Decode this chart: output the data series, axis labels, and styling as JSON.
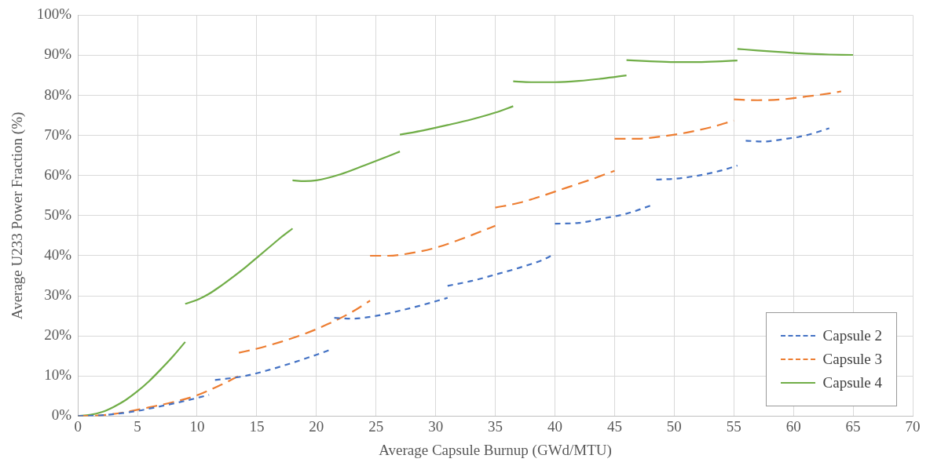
{
  "chart_data": {
    "type": "line",
    "xlabel": "Average Capsule Burnup (GWd/MTU)",
    "ylabel": "Average U233 Power Fraction (%)",
    "xlim": [
      0,
      70
    ],
    "xticks": [
      0,
      5,
      10,
      15,
      20,
      25,
      30,
      35,
      40,
      45,
      50,
      55,
      60,
      65,
      70
    ],
    "ylim": [
      0,
      100
    ],
    "yticks": [
      {
        "value": 0,
        "label": "0%"
      },
      {
        "value": 10,
        "label": "10%"
      },
      {
        "value": 20,
        "label": "20%"
      },
      {
        "value": 30,
        "label": "30%"
      },
      {
        "value": 40,
        "label": "40%"
      },
      {
        "value": 50,
        "label": "50%"
      },
      {
        "value": 60,
        "label": "60%"
      },
      {
        "value": 70,
        "label": "70%"
      },
      {
        "value": 80,
        "label": "80%"
      },
      {
        "value": 90,
        "label": "90%"
      },
      {
        "value": 100,
        "label": "100%"
      }
    ],
    "grid": true,
    "legend": "bottom right",
    "marker": "none",
    "series": [
      {
        "name": "Capsule 2",
        "color": "#4472c4",
        "line_style": "dashed",
        "x": [
          0,
          2,
          5,
          7,
          9,
          11,
          null,
          11.5,
          14,
          16,
          18,
          20,
          21.3,
          null,
          21.5,
          23,
          25,
          27,
          29,
          31,
          null,
          31,
          33,
          35,
          37,
          39,
          40,
          null,
          40,
          42,
          44,
          46,
          48.3,
          null,
          48.5,
          50,
          52,
          54,
          55.3,
          null,
          56,
          57.5,
          59,
          61,
          63
        ],
        "values": [
          0,
          0.2,
          1.3,
          2.5,
          3.8,
          5.3,
          null,
          9,
          10,
          11.5,
          13.3,
          15.3,
          16.7,
          null,
          24.5,
          24.3,
          25,
          26.3,
          27.8,
          29.5,
          null,
          32.5,
          33.7,
          35.3,
          37,
          39,
          40.5,
          null,
          48,
          48.2,
          49.3,
          50.5,
          52.8,
          null,
          59,
          59.2,
          60,
          61.3,
          62.5,
          null,
          68.7,
          68.5,
          69,
          70,
          71.8
        ]
      },
      {
        "name": "Capsule 3",
        "color": "#ed7d31",
        "line_style": "dashed",
        "x": [
          0,
          2,
          4,
          6,
          8,
          10,
          12,
          13.5,
          null,
          13.5,
          15,
          17,
          19,
          21,
          23,
          24.5,
          null,
          24.5,
          26,
          28,
          30,
          32,
          34,
          35,
          null,
          35,
          37,
          39,
          41,
          43,
          45,
          null,
          45,
          47,
          49,
          51,
          53,
          55,
          null,
          55,
          57,
          59,
          61,
          63,
          64
        ],
        "values": [
          0,
          0.2,
          1,
          2.2,
          3.5,
          5.2,
          7.8,
          10,
          null,
          15.8,
          16.8,
          18.5,
          20.5,
          23,
          26,
          28.8,
          null,
          40,
          40,
          40.7,
          42,
          44,
          46.3,
          47.5,
          null,
          52,
          53.2,
          55,
          57,
          59,
          61.2,
          null,
          69.2,
          69.2,
          69.8,
          70.7,
          72,
          73.7,
          null,
          79,
          78.8,
          79,
          79.7,
          80.5,
          81
        ]
      },
      {
        "name": "Capsule 4",
        "color": "#70ad47",
        "line_style": "solid",
        "x": [
          0,
          1,
          2,
          3,
          4,
          5,
          6,
          7,
          8,
          9,
          null,
          9,
          10,
          11,
          12,
          13,
          14,
          15,
          16,
          17,
          18,
          null,
          18,
          19,
          20,
          22,
          24,
          26,
          27,
          null,
          27,
          29,
          31,
          33,
          35,
          36.5,
          null,
          36.5,
          38,
          40,
          42,
          44,
          46,
          null,
          46,
          48,
          50,
          52,
          54,
          55.3,
          null,
          55.3,
          57,
          59,
          61,
          63,
          65
        ],
        "values": [
          0,
          0.3,
          1,
          2.3,
          4,
          6.2,
          8.8,
          11.8,
          15,
          18.5,
          null,
          28,
          29,
          30.5,
          32.5,
          34.7,
          37,
          39.5,
          42,
          44.5,
          46.8,
          null,
          58.8,
          58.6,
          58.8,
          60.3,
          62.5,
          64.8,
          66,
          null,
          70.2,
          71.3,
          72.6,
          74,
          75.7,
          77.3,
          null,
          83.5,
          83.3,
          83.3,
          83.6,
          84.2,
          85,
          null,
          88.8,
          88.5,
          88.3,
          88.3,
          88.5,
          88.7,
          null,
          91.6,
          91.2,
          90.8,
          90.4,
          90.2,
          90.1
        ]
      }
    ]
  }
}
